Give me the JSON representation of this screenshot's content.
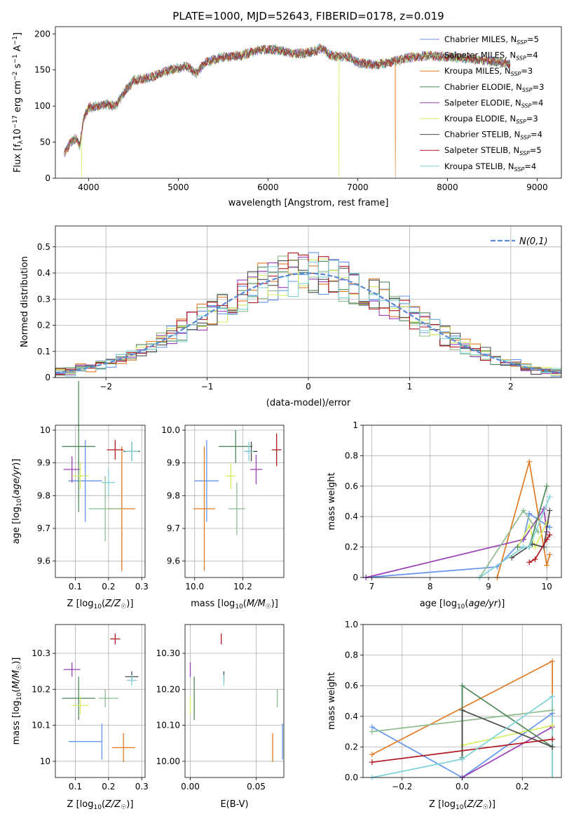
{
  "figure_title": "PLATE=1000, MJD=52643, FIBERID=0178, z=0.019",
  "legend_entries": [
    {
      "imf": "Chabrier",
      "lib": "MILES",
      "nssp": "5",
      "color": "#6495ed"
    },
    {
      "imf": "Salpeter",
      "lib": "MILES",
      "nssp": "4",
      "color": "#8fbc8f"
    },
    {
      "imf": "Kroupa",
      "lib": "MILES",
      "nssp": "3",
      "color": "#e07b26"
    },
    {
      "imf": "Chabrier",
      "lib": "ELODIE",
      "nssp": "3",
      "color": "#4f8a5a"
    },
    {
      "imf": "Salpeter",
      "lib": "ELODIE",
      "nssp": "4",
      "color": "#9a3fb6"
    },
    {
      "imf": "Kroupa",
      "lib": "ELODIE",
      "nssp": "3",
      "color": "#d6ec61"
    },
    {
      "imf": "Chabrier",
      "lib": "STELIB",
      "nssp": "4",
      "color": "#4d4d4d"
    },
    {
      "imf": "Salpeter",
      "lib": "STELIB",
      "nssp": "5",
      "color": "#b0171f"
    },
    {
      "imf": "Kroupa",
      "lib": "STELIB",
      "nssp": "4",
      "color": "#7fd3d8"
    }
  ],
  "chart_data": [
    {
      "id": "spectrum",
      "type": "line",
      "xlabel": "wavelength [Angstrom, rest frame]",
      "ylabel": "Flux [f_λ 10^-17 erg cm^-2 s^-1 A^-1]",
      "xlim": [
        3630,
        9270
      ],
      "ylim": [
        0,
        210
      ],
      "xticks": [
        4000,
        5000,
        6000,
        7000,
        8000,
        9000
      ],
      "yticks": [
        0,
        50,
        100,
        150,
        200
      ],
      "grid": false,
      "legend_position": "top-right",
      "continuum": [
        [
          3730,
          35
        ],
        [
          3800,
          50
        ],
        [
          3860,
          55
        ],
        [
          3900,
          45
        ],
        [
          3950,
          85
        ],
        [
          4000,
          98
        ],
        [
          4100,
          100
        ],
        [
          4200,
          102
        ],
        [
          4300,
          100
        ],
        [
          4400,
          120
        ],
        [
          4500,
          135
        ],
        [
          4700,
          140
        ],
        [
          4900,
          150
        ],
        [
          5100,
          155
        ],
        [
          5200,
          145
        ],
        [
          5300,
          160
        ],
        [
          5500,
          168
        ],
        [
          5700,
          170
        ],
        [
          5900,
          178
        ],
        [
          6100,
          178
        ],
        [
          6300,
          172
        ],
        [
          6500,
          175
        ],
        [
          6600,
          180
        ],
        [
          6700,
          170
        ],
        [
          6900,
          168
        ],
        [
          7000,
          160
        ],
        [
          7200,
          157
        ],
        [
          7400,
          162
        ],
        [
          7600,
          168
        ],
        [
          7800,
          170
        ],
        [
          8000,
          168
        ],
        [
          8200,
          166
        ],
        [
          8400,
          164
        ],
        [
          8600,
          160
        ],
        [
          8700,
          158
        ]
      ],
      "dips": [
        {
          "series": 5,
          "x": 3920
        },
        {
          "series": 5,
          "x": 6790
        },
        {
          "series": 2,
          "x": 7420
        }
      ]
    },
    {
      "id": "residuals",
      "type": "histogram",
      "xlabel": "(data-model)/error",
      "ylabel": "Normed distribution",
      "xlim": [
        -2.5,
        2.5
      ],
      "ylim": [
        0,
        0.58
      ],
      "xticks": [
        -2,
        -1,
        0,
        1,
        2
      ],
      "yticks": [
        0.0,
        0.1,
        0.2,
        0.3,
        0.4,
        0.5
      ],
      "grid": true,
      "legend_position": "top-right",
      "gaussian_label": "N(0,1)",
      "bin_width": 0.1
    },
    {
      "id": "age_vs_Z",
      "type": "errorbar",
      "xlabel": "Z [log10(Z/Z☉)]",
      "ylabel": "age [log10(age/yr)]",
      "xlim": [
        0.04,
        0.31
      ],
      "ylim": [
        9.55,
        10.015
      ],
      "xticks": [
        0.1,
        0.2,
        0.3
      ],
      "yticks": [
        9.6,
        9.7,
        9.8,
        9.9,
        10.0
      ],
      "grid": true,
      "points": [
        {
          "series": 0,
          "x": 0.13,
          "y": 9.845,
          "xerr": 0.05,
          "yerr": 0.125
        },
        {
          "series": 3,
          "x": 0.11,
          "y": 9.95,
          "xerr": 0.05,
          "yerr": 0.2
        },
        {
          "series": 4,
          "x": 0.09,
          "y": 9.88,
          "xerr": 0.025,
          "yerr": 0.04
        },
        {
          "series": 5,
          "x": 0.115,
          "y": 9.86,
          "xerr": 0.025,
          "yerr": 0.04
        },
        {
          "series": 2,
          "x": 0.24,
          "y": 9.76,
          "xerr": 0.04,
          "yerr": 0.19
        },
        {
          "series": 1,
          "x": 0.19,
          "y": 9.76,
          "xerr": 0.05,
          "yerr": 0.1
        },
        {
          "series": 8,
          "x": 0.2,
          "y": 9.84,
          "xerr": 0.02,
          "yerr": 0.04
        },
        {
          "series": 7,
          "x": 0.22,
          "y": 9.94,
          "xerr": 0.025,
          "yerr": 0.03
        },
        {
          "series": 6,
          "x": 0.27,
          "y": 9.935,
          "xerr": 0.025,
          "yerr": 0.03
        },
        {
          "series": 8,
          "x": 0.27,
          "y": 9.935,
          "xerr": 0.02,
          "yerr": 0.03
        }
      ]
    },
    {
      "id": "age_vs_mass",
      "type": "errorbar",
      "xlabel": "mass [log10(M/M☉)]",
      "ylabel": "",
      "xlim": [
        9.96,
        10.37
      ],
      "ylim": [
        9.55,
        10.015
      ],
      "xticks": [
        10.0,
        10.2
      ],
      "yticks": [
        9.6,
        9.7,
        9.8,
        9.9,
        10.0
      ],
      "grid": true,
      "points": [
        {
          "series": 0,
          "x": 10.05,
          "y": 9.845,
          "xerr": 0.05,
          "yerr": 0.125
        },
        {
          "series": 3,
          "x": 10.17,
          "y": 9.95,
          "xerr": 0.07,
          "yerr": 0.05
        },
        {
          "series": 4,
          "x": 10.255,
          "y": 9.88,
          "xerr": 0.025,
          "yerr": 0.045
        },
        {
          "series": 5,
          "x": 10.15,
          "y": 9.86,
          "xerr": 0.02,
          "yerr": 0.04
        },
        {
          "series": 2,
          "x": 10.04,
          "y": 9.76,
          "xerr": 0.045,
          "yerr": 0.19
        },
        {
          "series": 1,
          "x": 10.175,
          "y": 9.76,
          "xerr": 0.035,
          "yerr": 0.08
        },
        {
          "series": 7,
          "x": 10.34,
          "y": 9.94,
          "xerr": 0.02,
          "yerr": 0.05
        },
        {
          "series": 6,
          "x": 10.235,
          "y": 9.935,
          "xerr": 0.025,
          "yerr": 0.03
        },
        {
          "series": 8,
          "x": 10.225,
          "y": 9.935,
          "xerr": 0.02,
          "yerr": 0.03
        }
      ]
    },
    {
      "id": "weight_vs_age",
      "type": "line",
      "xlabel": "age [log10(age/yr)]",
      "ylabel": "mass weight",
      "xlim": [
        6.85,
        10.25
      ],
      "ylim": [
        0,
        1.0
      ],
      "xticks": [
        7,
        8,
        9,
        10
      ],
      "yticks": [
        0.0,
        0.2,
        0.4,
        0.6,
        0.8,
        1.0
      ],
      "grid": true,
      "series": [
        {
          "series": 0,
          "points": [
            [
              6.9,
              0.0
            ],
            [
              9.15,
              0.07
            ],
            [
              9.6,
              0.25
            ],
            [
              9.7,
              0.42
            ],
            [
              10.05,
              0.33
            ]
          ]
        },
        {
          "series": 2,
          "points": [
            [
              9.15,
              0.0
            ],
            [
              9.7,
              0.76
            ],
            [
              10.0,
              0.08
            ],
            [
              10.05,
              0.15
            ]
          ]
        },
        {
          "series": 4,
          "points": [
            [
              6.9,
              0.0
            ],
            [
              9.6,
              0.25
            ],
            [
              9.95,
              0.45
            ],
            [
              10.0,
              0.3
            ]
          ]
        },
        {
          "series": 1,
          "points": [
            [
              8.85,
              0.0
            ],
            [
              9.6,
              0.44
            ],
            [
              9.85,
              0.3
            ]
          ]
        },
        {
          "series": 5,
          "points": [
            [
              9.5,
              0.2
            ],
            [
              9.7,
              0.34
            ],
            [
              9.8,
              0.2
            ],
            [
              10.0,
              0.36
            ]
          ]
        },
        {
          "series": 3,
          "points": [
            [
              9.5,
              0.2
            ],
            [
              9.7,
              0.2
            ],
            [
              10.0,
              0.6
            ]
          ]
        },
        {
          "series": 6,
          "points": [
            [
              9.4,
              0.13
            ],
            [
              9.75,
              0.22
            ],
            [
              9.95,
              0.2
            ],
            [
              10.05,
              0.44
            ]
          ]
        },
        {
          "series": 7,
          "points": [
            [
              9.7,
              0.1
            ],
            [
              9.8,
              0.12
            ],
            [
              10.0,
              0.25
            ],
            [
              10.05,
              0.28
            ]
          ]
        },
        {
          "series": 8,
          "points": [
            [
              8.85,
              0.0
            ],
            [
              9.6,
              0.2
            ],
            [
              9.7,
              0.2
            ],
            [
              10.05,
              0.53
            ]
          ]
        }
      ]
    },
    {
      "id": "mass_vs_Z",
      "type": "errorbar",
      "xlabel": "Z [log10(Z/Z☉)]",
      "ylabel": "mass [log10(M/M☉)]",
      "xlim": [
        0.04,
        0.31
      ],
      "ylim": [
        9.955,
        10.38
      ],
      "xticks": [
        0.1,
        0.2,
        0.3
      ],
      "yticks": [
        10.0,
        10.1,
        10.2,
        10.3
      ],
      "grid": true,
      "points": [
        {
          "series": 0,
          "x": 0.13,
          "y": 10.055,
          "xerr": 0.05,
          "yerr": 0.0
        },
        {
          "series": 0,
          "x": 0.18,
          "y": 10.055,
          "xerr": 0.0,
          "yerr": 0.05
        },
        {
          "series": 3,
          "x": 0.11,
          "y": 10.175,
          "xerr": 0.05,
          "yerr": 0.06
        },
        {
          "series": 4,
          "x": 0.09,
          "y": 10.255,
          "xerr": 0.025,
          "yerr": 0.02
        },
        {
          "series": 5,
          "x": 0.115,
          "y": 10.155,
          "xerr": 0.025,
          "yerr": 0.025
        },
        {
          "series": 2,
          "x": 0.245,
          "y": 10.038,
          "xerr": 0.035,
          "yerr": 0.04
        },
        {
          "series": 1,
          "x": 0.2,
          "y": 10.175,
          "xerr": 0.03,
          "yerr": 0.0
        },
        {
          "series": 1,
          "x": 0.19,
          "y": 10.175,
          "xerr": 0.0,
          "yerr": 0.025
        },
        {
          "series": 7,
          "x": 0.22,
          "y": 10.34,
          "xerr": 0.015,
          "yerr": 0.015
        },
        {
          "series": 6,
          "x": 0.27,
          "y": 10.235,
          "xerr": 0.02,
          "yerr": 0.015
        },
        {
          "series": 8,
          "x": 0.27,
          "y": 10.225,
          "xerr": 0.015,
          "yerr": 0.015
        }
      ]
    },
    {
      "id": "mass_vs_ebv",
      "type": "errorbar",
      "xlabel": "E(B-V)",
      "ylabel": "",
      "xlim": [
        -0.004,
        0.071
      ],
      "ylim": [
        9.955,
        10.38
      ],
      "xticks": [
        0.0,
        0.05
      ],
      "yticks": [
        10.0,
        10.1,
        10.2,
        10.3
      ],
      "grid": true,
      "points": [
        {
          "series": 4,
          "x": 0.0,
          "y": 10.255,
          "xerr": 0.0,
          "yerr": 0.02
        },
        {
          "series": 5,
          "x": 0.0,
          "y": 10.155,
          "xerr": 0.0,
          "yerr": 0.025
        },
        {
          "series": 3,
          "x": 0.003,
          "y": 10.175,
          "xerr": 0.0,
          "yerr": 0.06
        },
        {
          "series": 7,
          "x": 0.0235,
          "y": 10.34,
          "xerr": 0.0,
          "yerr": 0.015
        },
        {
          "series": 6,
          "x": 0.0255,
          "y": 10.235,
          "xerr": 0.0,
          "yerr": 0.015
        },
        {
          "series": 8,
          "x": 0.0255,
          "y": 10.225,
          "xerr": 0.0,
          "yerr": 0.015
        },
        {
          "series": 2,
          "x": 0.0625,
          "y": 10.038,
          "xerr": 0.0,
          "yerr": 0.04
        },
        {
          "series": 1,
          "x": 0.066,
          "y": 10.175,
          "xerr": 0.0,
          "yerr": 0.025
        },
        {
          "series": 0,
          "x": 0.07,
          "y": 10.055,
          "xerr": 0.0,
          "yerr": 0.05
        }
      ]
    },
    {
      "id": "weight_vs_Z",
      "type": "line",
      "xlabel": "Z [log10(Z/Z☉)]",
      "ylabel": "mass weight",
      "xlim": [
        -0.33,
        0.33
      ],
      "ylim": [
        0,
        1.0
      ],
      "xticks": [
        -0.2,
        0.0,
        0.2
      ],
      "yticks": [
        0.0,
        0.2,
        0.4,
        0.6,
        0.8,
        1.0
      ],
      "grid": true,
      "series": [
        {
          "series": 0,
          "points": [
            [
              -0.3,
              0.33
            ],
            [
              0.0,
              0.0
            ],
            [
              0.3,
              0.42
            ]
          ]
        },
        {
          "series": 2,
          "points": [
            [
              -0.3,
              0.15
            ],
            [
              0.3,
              0.76
            ]
          ]
        },
        {
          "series": 4,
          "points": [
            [
              0.0,
              0.0
            ],
            [
              0.3,
              0.33
            ]
          ]
        },
        {
          "series": 1,
          "points": [
            [
              -0.3,
              0.3
            ],
            [
              0.3,
              0.44
            ]
          ]
        },
        {
          "series": 5,
          "points": [
            [
              0.0,
              0.21
            ],
            [
              0.3,
              0.34
            ]
          ]
        },
        {
          "series": 3,
          "points": [
            [
              0.0,
              0.13
            ],
            [
              0.0,
              0.6
            ],
            [
              0.3,
              0.2
            ]
          ]
        },
        {
          "series": 6,
          "points": [
            [
              0.0,
              0.12
            ],
            [
              0.0,
              0.44
            ],
            [
              0.3,
              0.2
            ]
          ]
        },
        {
          "series": 7,
          "points": [
            [
              -0.3,
              0.1
            ],
            [
              0.3,
              0.25
            ]
          ]
        },
        {
          "series": 8,
          "points": [
            [
              -0.3,
              0.0
            ],
            [
              0.0,
              0.12
            ],
            [
              0.3,
              0.53
            ]
          ]
        }
      ],
      "vertical_bars": [
        {
          "series": 2,
          "x": 0.3,
          "ymin": 0.0,
          "ymax": 0.76
        },
        {
          "series": 3,
          "x": 0.0,
          "ymin": 0.13,
          "ymax": 0.6
        },
        {
          "series": 8,
          "x": 0.3,
          "ymin": 0.0,
          "ymax": 0.53
        }
      ]
    }
  ]
}
